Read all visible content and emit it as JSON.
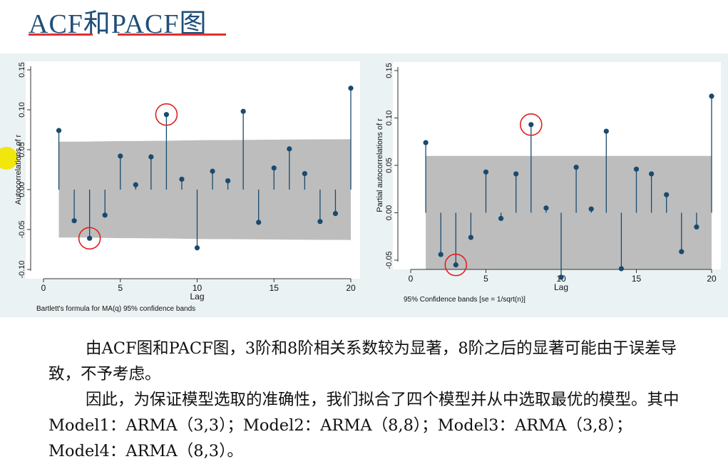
{
  "slide": {
    "title": "ACF和PACF图",
    "underline_color": "#e03030",
    "title_color": "#1f4e79"
  },
  "body": {
    "paragraph1": "由ACF图和PACF图，3阶和8阶相关系数较为显著，8阶之后的显著可能由于误差导致，不予考虑。",
    "paragraph2": "因此，为保证模型选取的准确性，我们拟合了四个模型并从中选取最优的模型。其中Model1：ARMA（3,3）；Model2：ARMA（8,8）；Model3：ARMA（3,8）；Model4：ARMA（8,3）。"
  },
  "chart_data": [
    {
      "type": "stem",
      "name": "acf",
      "ylabel": "Autocorrelations of r",
      "xlabel": "Lag",
      "note": "Bartlett's formula for MA(q) 95% confidence bands",
      "xlim": [
        0,
        20
      ],
      "ylim": [
        -0.1,
        0.15
      ],
      "x_ticks": [
        0,
        5,
        10,
        15,
        20
      ],
      "y_ticks": [
        -0.1,
        -0.05,
        0.0,
        0.05,
        0.1,
        0.15
      ],
      "y_tick_labels": [
        "-0.10",
        "-0.05",
        "0.00",
        "0.05",
        "0.10",
        "0.15"
      ],
      "x": [
        1,
        2,
        3,
        4,
        5,
        6,
        7,
        8,
        9,
        10,
        11,
        12,
        13,
        14,
        15,
        16,
        17,
        18,
        19,
        20
      ],
      "values": [
        0.074,
        -0.039,
        -0.061,
        -0.032,
        0.042,
        0.006,
        0.041,
        0.094,
        0.013,
        -0.073,
        0.023,
        0.011,
        0.098,
        -0.041,
        0.027,
        0.051,
        0.02,
        -0.04,
        -0.03,
        0.127
      ],
      "band_upper": [
        0.06,
        0.06,
        0.0602,
        0.0605,
        0.0608,
        0.0608,
        0.061,
        0.0612,
        0.0615,
        0.0618,
        0.062,
        0.0621,
        0.0622,
        0.0624,
        0.0625,
        0.0627,
        0.0628,
        0.0629,
        0.063,
        0.0632
      ],
      "highlighted_lags": [
        3,
        8
      ],
      "highlight_color": "#e02020",
      "marker_color": "#1a4a6e",
      "band_color": "#bdbdbd"
    },
    {
      "type": "stem",
      "name": "pacf",
      "ylabel": "Partial autocorrelations of r",
      "xlabel": "Lag",
      "note": "95% Confidence bands [se = 1/sqrt(n)]",
      "xlim": [
        0,
        20
      ],
      "ylim": [
        -0.05,
        0.15
      ],
      "x_ticks": [
        0,
        5,
        10,
        15,
        20
      ],
      "y_ticks": [
        -0.05,
        0.0,
        0.05,
        0.1,
        0.15
      ],
      "y_tick_labels": [
        "-0.05",
        "0.00",
        "0.05",
        "0.10",
        "0.15"
      ],
      "x": [
        1,
        2,
        3,
        4,
        5,
        6,
        7,
        8,
        9,
        10,
        11,
        12,
        13,
        14,
        15,
        16,
        17,
        18,
        19,
        20
      ],
      "values": [
        0.074,
        -0.044,
        -0.055,
        -0.026,
        0.043,
        -0.006,
        0.041,
        0.093,
        0.005,
        -0.068,
        0.048,
        0.004,
        0.086,
        -0.059,
        0.046,
        0.041,
        0.019,
        -0.041,
        -0.015,
        0.123
      ],
      "band_upper": [
        0.06,
        0.06,
        0.06,
        0.06,
        0.06,
        0.06,
        0.06,
        0.06,
        0.06,
        0.06,
        0.06,
        0.06,
        0.06,
        0.06,
        0.06,
        0.06,
        0.06,
        0.06,
        0.06,
        0.06
      ],
      "highlighted_lags": [
        3,
        8
      ],
      "highlight_color": "#e02020",
      "marker_color": "#1a4a6e",
      "band_color": "#bdbdbd"
    }
  ]
}
